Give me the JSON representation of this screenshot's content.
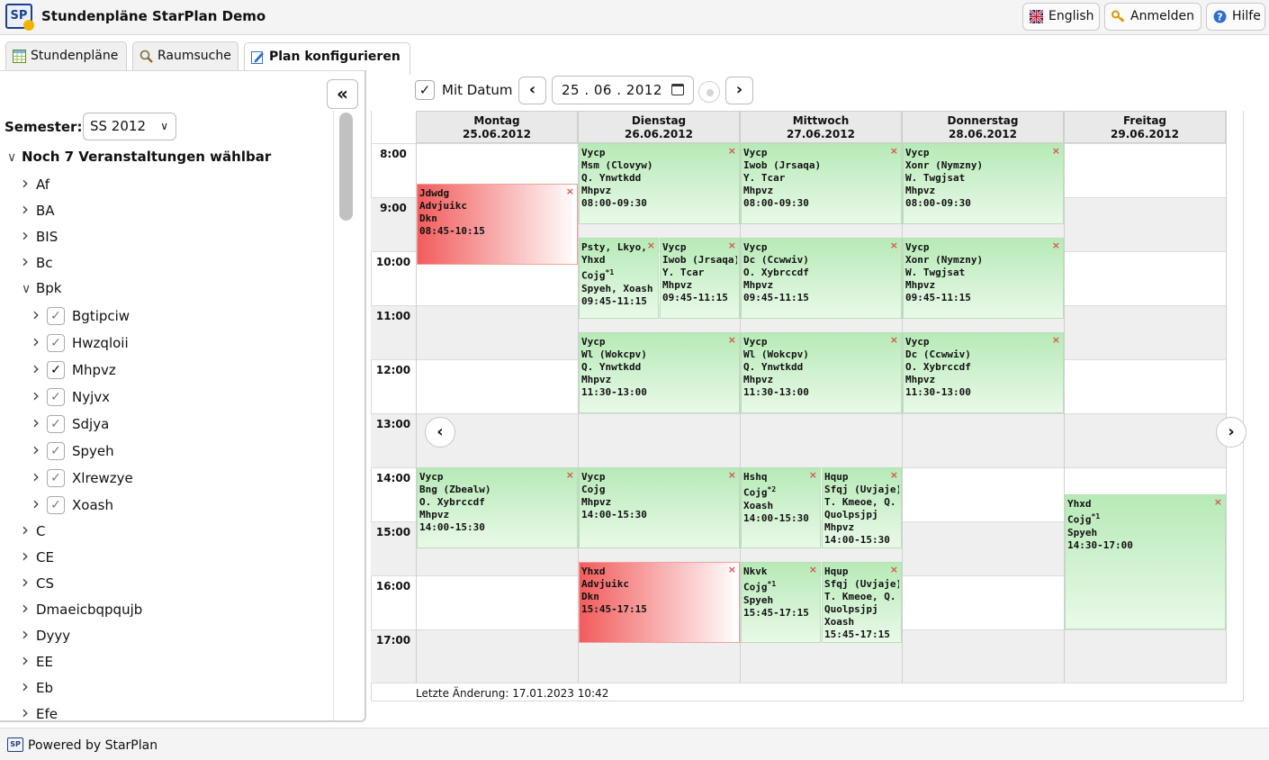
{
  "app": {
    "title": "Stundenpläne StarPlan Demo",
    "logo_text": "SP"
  },
  "top_buttons": {
    "english": "English",
    "login": "Anmelden",
    "help": "Hilfe"
  },
  "tabs": [
    {
      "label": "Stundenpläne"
    },
    {
      "label": "Raumsuche"
    },
    {
      "label": "Plan konfigurieren"
    }
  ],
  "sidebar": {
    "collapse_icon": "«",
    "semester_label": "Semester:",
    "semester_value": "SS 2012",
    "tree": [
      {
        "label": "Noch 7 Veranstaltungen wählbar",
        "caret": "∨",
        "bold": true,
        "level": 0
      },
      {
        "label": "Af",
        "caret": "›",
        "level": 1
      },
      {
        "label": "BA",
        "caret": "›",
        "level": 1
      },
      {
        "label": "BIS",
        "caret": "›",
        "level": 1
      },
      {
        "label": "Bc",
        "caret": "›",
        "level": 1
      },
      {
        "label": "Bpk",
        "caret": "∨",
        "level": 1
      },
      {
        "label": "Bgtipciw",
        "caret": "›",
        "level": 2,
        "checked": true
      },
      {
        "label": "Hwzqloii",
        "caret": "›",
        "level": 2,
        "checked": true
      },
      {
        "label": "Mhpvz",
        "caret": "›",
        "level": 2,
        "checked": true,
        "strong": true
      },
      {
        "label": "Nyjvx",
        "caret": "›",
        "level": 2,
        "checked": true
      },
      {
        "label": "Sdjya",
        "caret": "›",
        "level": 2,
        "checked": true
      },
      {
        "label": "Spyeh",
        "caret": "›",
        "level": 2,
        "checked": true
      },
      {
        "label": "Xlrewzye",
        "caret": "›",
        "level": 2,
        "checked": true
      },
      {
        "label": "Xoash",
        "caret": "›",
        "level": 2,
        "checked": true
      },
      {
        "label": "C",
        "caret": "›",
        "level": 1
      },
      {
        "label": "CE",
        "caret": "›",
        "level": 1
      },
      {
        "label": "CS",
        "caret": "›",
        "level": 1
      },
      {
        "label": "Dmaeicbqpqujb",
        "caret": "›",
        "level": 1
      },
      {
        "label": "Dyyy",
        "caret": "›",
        "level": 1
      },
      {
        "label": "EE",
        "caret": "›",
        "level": 1
      },
      {
        "label": "Eb",
        "caret": "›",
        "level": 1
      },
      {
        "label": "Efe",
        "caret": "›",
        "level": 1
      }
    ]
  },
  "toolbar": {
    "mit_datum_label": "Mit Datum",
    "mit_datum_checked": true,
    "prev_icon": "‹",
    "next_icon": "›",
    "date_value": "25 . 06 . 2012"
  },
  "calendar": {
    "days": [
      {
        "name": "Montag",
        "date": "25.06.2012"
      },
      {
        "name": "Dienstag",
        "date": "26.06.2012"
      },
      {
        "name": "Mittwoch",
        "date": "27.06.2012"
      },
      {
        "name": "Donnerstag",
        "date": "28.06.2012"
      },
      {
        "name": "Freitag",
        "date": "29.06.2012"
      }
    ],
    "hours": [
      "8:00",
      "9:00",
      "10:00",
      "11:00",
      "12:00",
      "13:00",
      "14:00",
      "15:00",
      "16:00",
      "17:00"
    ],
    "events": [
      {
        "day": 0,
        "start": "08:45",
        "end": "10:15",
        "lines": [
          "Jdwdg",
          "Advjuikc",
          "Dkn",
          "08:45-10:15"
        ],
        "color": "red",
        "col": 0,
        "cols": 1
      },
      {
        "day": 1,
        "start": "08:00",
        "end": "09:30",
        "lines": [
          "Vycp",
          "Msm (Clovyw)",
          "Q. Ynwtkdd",
          "Mhpvz",
          "08:00-09:30"
        ],
        "color": "green",
        "col": 0,
        "cols": 1
      },
      {
        "day": 2,
        "start": "08:00",
        "end": "09:30",
        "lines": [
          "Vycp",
          "Iwob (Jrsaqa)",
          "Y. Tcar",
          "Mhpvz",
          "08:00-09:30"
        ],
        "color": "green",
        "col": 0,
        "cols": 1
      },
      {
        "day": 3,
        "start": "08:00",
        "end": "09:30",
        "lines": [
          "Vycp",
          "Xonr (Nymzny)",
          "W. Twgjsat",
          "Mhpvz",
          "08:00-09:30"
        ],
        "color": "green",
        "col": 0,
        "cols": 1
      },
      {
        "day": 1,
        "start": "09:45",
        "end": "11:15",
        "lines": [
          "Psty, Lkyo,",
          "Yhxd",
          "Cojg*1",
          "Spyeh, Xoash",
          "09:45-11:15"
        ],
        "color": "green",
        "col": 0,
        "cols": 2
      },
      {
        "day": 1,
        "start": "09:45",
        "end": "11:15",
        "lines": [
          "Vycp",
          "Iwob (Jrsaqa)",
          "Y. Tcar",
          "Mhpvz",
          "09:45-11:15"
        ],
        "color": "green",
        "col": 1,
        "cols": 2
      },
      {
        "day": 2,
        "start": "09:45",
        "end": "11:15",
        "lines": [
          "Vycp",
          "Dc (Ccwwiv)",
          "O. Xybrccdf",
          "Mhpvz",
          "09:45-11:15"
        ],
        "color": "green",
        "col": 0,
        "cols": 1
      },
      {
        "day": 3,
        "start": "09:45",
        "end": "11:15",
        "lines": [
          "Vycp",
          "Xonr (Nymzny)",
          "W. Twgjsat",
          "Mhpvz",
          "09:45-11:15"
        ],
        "color": "green",
        "col": 0,
        "cols": 1
      },
      {
        "day": 1,
        "start": "11:30",
        "end": "13:00",
        "lines": [
          "Vycp",
          "Wl (Wokcpv)",
          "Q. Ynwtkdd",
          "Mhpvz",
          "11:30-13:00"
        ],
        "color": "green",
        "col": 0,
        "cols": 1
      },
      {
        "day": 2,
        "start": "11:30",
        "end": "13:00",
        "lines": [
          "Vycp",
          "Wl (Wokcpv)",
          "Q. Ynwtkdd",
          "Mhpvz",
          "11:30-13:00"
        ],
        "color": "green",
        "col": 0,
        "cols": 1
      },
      {
        "day": 3,
        "start": "11:30",
        "end": "13:00",
        "lines": [
          "Vycp",
          "Dc (Ccwwiv)",
          "O. Xybrccdf",
          "Mhpvz",
          "11:30-13:00"
        ],
        "color": "green",
        "col": 0,
        "cols": 1
      },
      {
        "day": 0,
        "start": "14:00",
        "end": "15:30",
        "lines": [
          "Vycp",
          "Bng (Zbealw)",
          "O. Xybrccdf",
          "Mhpvz",
          "14:00-15:30"
        ],
        "color": "green",
        "col": 0,
        "cols": 1
      },
      {
        "day": 1,
        "start": "14:00",
        "end": "15:30",
        "lines": [
          "Vycp",
          "Cojg",
          "Mhpvz",
          "14:00-15:30"
        ],
        "color": "green",
        "col": 0,
        "cols": 1
      },
      {
        "day": 2,
        "start": "14:00",
        "end": "15:30",
        "lines": [
          "Hshq",
          "Cojg*2",
          "Xoash",
          "14:00-15:30"
        ],
        "color": "green",
        "col": 0,
        "cols": 2
      },
      {
        "day": 2,
        "start": "14:00",
        "end": "15:30",
        "lines": [
          "Hqup",
          "Sfqj (Uvjaje)",
          "T. Kmeoe, Q.",
          "Quolpsjpj",
          "Mhpvz",
          "14:00-15:30"
        ],
        "color": "green",
        "col": 1,
        "cols": 2
      },
      {
        "day": 4,
        "start": "14:30",
        "end": "17:00",
        "lines": [
          "Yhxd",
          "Cojg*1",
          "Spyeh",
          "14:30-17:00"
        ],
        "color": "green",
        "col": 0,
        "cols": 1
      },
      {
        "day": 1,
        "start": "15:45",
        "end": "17:15",
        "lines": [
          "Yhxd",
          "Advjuikc",
          "Dkn",
          "15:45-17:15"
        ],
        "color": "red",
        "col": 0,
        "cols": 1
      },
      {
        "day": 2,
        "start": "15:45",
        "end": "17:15",
        "lines": [
          "Nkvk",
          "Cojg*1",
          "Spyeh",
          "15:45-17:15"
        ],
        "color": "green",
        "col": 0,
        "cols": 2
      },
      {
        "day": 2,
        "start": "15:45",
        "end": "17:15",
        "lines": [
          "Hqup",
          "Sfqj (Uvjaje)",
          "T. Kmeoe, Q.",
          "Quolpsjpj",
          "Xoash",
          "15:45-17:15"
        ],
        "color": "green",
        "col": 1,
        "cols": 2
      }
    ],
    "remove_icon": "×",
    "week_prev_icon": "‹",
    "week_next_icon": "›",
    "last_change_label": "Letzte Änderung:",
    "last_change_value": "17.01.2023 10:42"
  },
  "footer": {
    "text": "Powered by StarPlan",
    "logo_text": "SP"
  }
}
